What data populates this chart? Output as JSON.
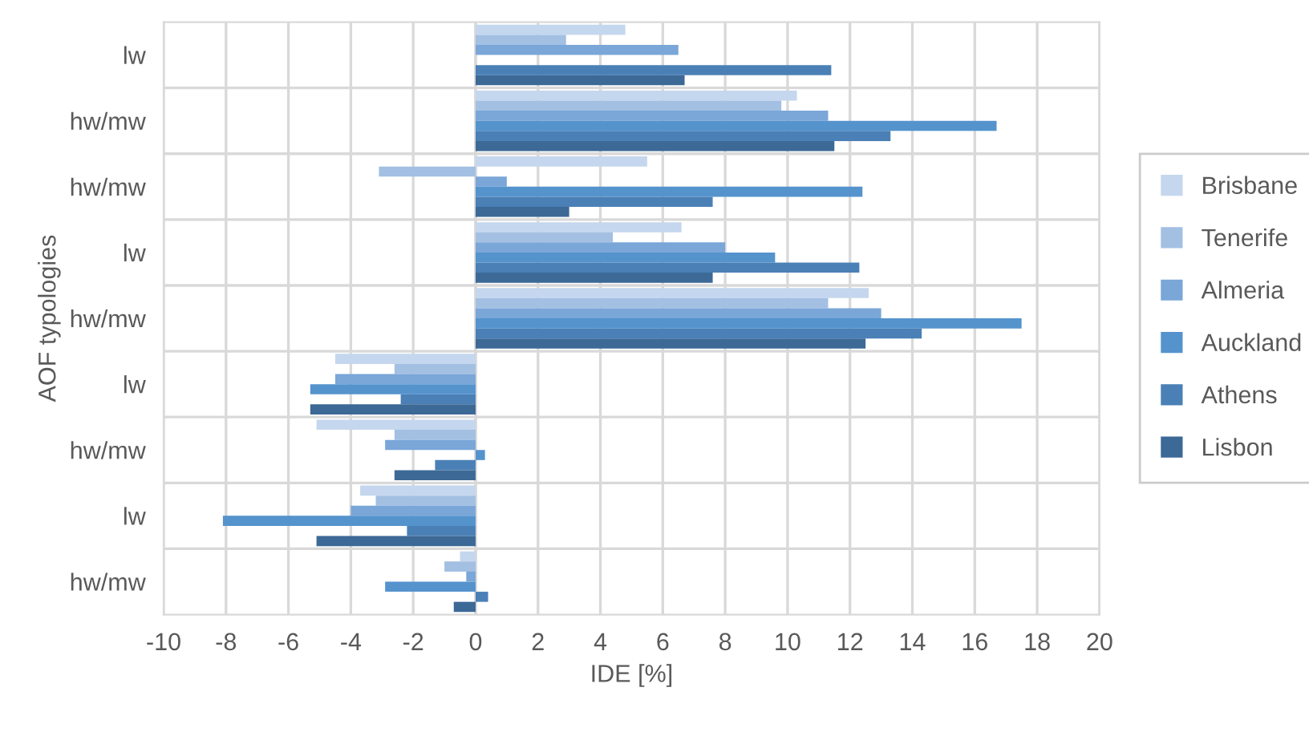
{
  "chart_data": {
    "type": "bar",
    "orientation": "horizontal",
    "xlabel": "IDE [%]",
    "ylabel": "AOF typologies",
    "categories": [
      "lw",
      "hw/mw",
      "hw/mw",
      "lw",
      "hw/mw",
      "lw",
      "hw/mw",
      "lw",
      "hw/mw"
    ],
    "series": [
      {
        "name": "Brisbane",
        "color": "#c5d7ee",
        "values": [
          4.8,
          10.3,
          5.5,
          6.6,
          12.6,
          -4.5,
          -5.1,
          -3.7,
          -0.5
        ]
      },
      {
        "name": "Tenerife",
        "color": "#a3c0e3",
        "values": [
          2.9,
          9.8,
          -3.1,
          4.4,
          11.3,
          -2.6,
          -2.6,
          -3.2,
          -1.0
        ]
      },
      {
        "name": "Almeria",
        "color": "#7aa6d8",
        "values": [
          6.5,
          11.3,
          1.0,
          8.0,
          13.0,
          -4.5,
          -2.9,
          -4.0,
          -0.3
        ]
      },
      {
        "name": "Auckland",
        "color": "#5593cd",
        "values": [
          null,
          16.7,
          12.4,
          9.6,
          17.5,
          -5.3,
          0.3,
          -8.1,
          -2.9
        ]
      },
      {
        "name": "Athens",
        "color": "#4a80b6",
        "values": [
          11.4,
          13.3,
          7.6,
          12.3,
          14.3,
          -2.4,
          -1.3,
          -2.2,
          0.4
        ]
      },
      {
        "name": "Lisbon",
        "color": "#3c6996",
        "values": [
          6.7,
          11.5,
          3.0,
          7.6,
          12.5,
          -5.3,
          -2.6,
          -5.1,
          -0.7
        ]
      }
    ],
    "xlim": [
      -10,
      20
    ],
    "xticks": [
      -10,
      -8,
      -6,
      -4,
      -2,
      0,
      2,
      4,
      6,
      8,
      10,
      12,
      14,
      16,
      18,
      20
    ],
    "grid": true,
    "legend": "right"
  }
}
